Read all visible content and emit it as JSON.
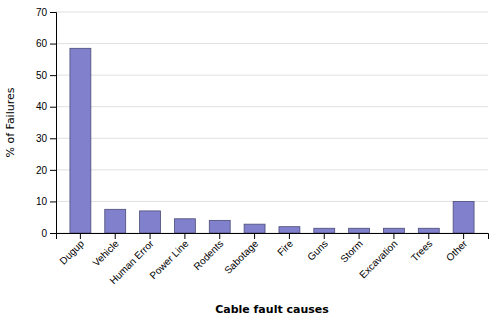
{
  "chart_data": {
    "type": "bar",
    "xlabel": "Cable fault causes",
    "ylabel": "% of Failures",
    "categories": [
      "Dugup",
      "Vehicle",
      "Human Error",
      "Power Line",
      "Rodents",
      "Sabotage",
      "Fire",
      "Guns",
      "Storm",
      "Excavation",
      "Trees",
      "Other"
    ],
    "values": [
      58.5,
      7.5,
      7.0,
      4.5,
      4.0,
      2.8,
      2.0,
      1.5,
      1.5,
      1.5,
      1.5,
      10.0
    ],
    "color": "#8080cc",
    "ylim": [
      0,
      70
    ],
    "yticks": [
      0,
      10,
      20,
      30,
      40,
      50,
      60,
      70
    ],
    "grid": true
  }
}
